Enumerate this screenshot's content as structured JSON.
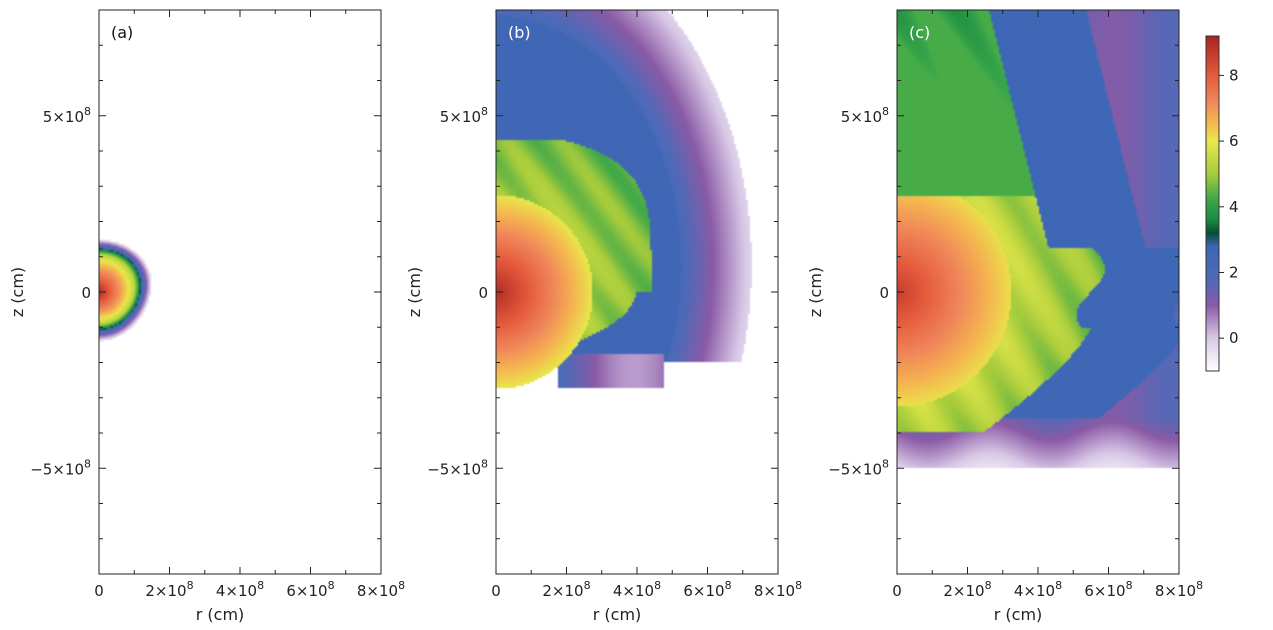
{
  "chart_data": {
    "type": "heatmap",
    "panels": [
      {
        "label": "(a)",
        "xlabel": "r (cm)",
        "ylabel": "z (cm)",
        "xlim": [
          0,
          800000000.0
        ],
        "ylim": [
          -800000000.0,
          800000000.0
        ],
        "x_ticks": [
          "0",
          "2×10^8",
          "4×10^8",
          "6×10^8",
          "8×10^8"
        ],
        "y_ticks": [
          "5×10^8",
          "0",
          "−5×10^8"
        ],
        "label_color": "#111111"
      },
      {
        "label": "(b)",
        "xlabel": "r (cm)",
        "ylabel": "z (cm)",
        "xlim": [
          0,
          800000000.0
        ],
        "ylim": [
          -800000000.0,
          800000000.0
        ],
        "x_ticks": [
          "0",
          "2×10^8",
          "4×10^8",
          "6×10^8",
          "8×10^8"
        ],
        "y_ticks": [
          "5×10^8",
          "0",
          "−5×10^8"
        ],
        "label_color": "#ffffff"
      },
      {
        "label": "(c)",
        "xlabel": "r (cm)",
        "ylabel": "z (cm)",
        "xlim": [
          0,
          800000000.0
        ],
        "ylim": [
          -800000000.0,
          800000000.0
        ],
        "x_ticks": [
          "0",
          "2×10^8",
          "4×10^8",
          "6×10^8",
          "8×10^8"
        ],
        "y_ticks": [
          "5×10^8",
          "0",
          "−5×10^8"
        ],
        "label_color": "#ffffff"
      }
    ],
    "colorbar": {
      "range": [
        -1,
        9.2
      ],
      "ticks": [
        0,
        2,
        4,
        6,
        8
      ],
      "tick_labels": [
        "0",
        "2",
        "4",
        "6",
        "8"
      ],
      "colormap": [
        {
          "v": -1.0,
          "color": "#ffffff"
        },
        {
          "v": 0.0,
          "color": "#d8c8e6"
        },
        {
          "v": 1.0,
          "color": "#8a5aa6"
        },
        {
          "v": 1.8,
          "color": "#4e6ab8"
        },
        {
          "v": 2.8,
          "color": "#3a66b4"
        },
        {
          "v": 3.2,
          "color": "#0a4c34"
        },
        {
          "v": 3.6,
          "color": "#1a8a40"
        },
        {
          "v": 4.2,
          "color": "#3aa64a"
        },
        {
          "v": 5.0,
          "color": "#a6cc3c"
        },
        {
          "v": 6.0,
          "color": "#e8e84a"
        },
        {
          "v": 6.6,
          "color": "#f5b450"
        },
        {
          "v": 7.2,
          "color": "#f0885a"
        },
        {
          "v": 8.0,
          "color": "#e55a3c"
        },
        {
          "v": 9.2,
          "color": "#a82420"
        }
      ]
    }
  }
}
